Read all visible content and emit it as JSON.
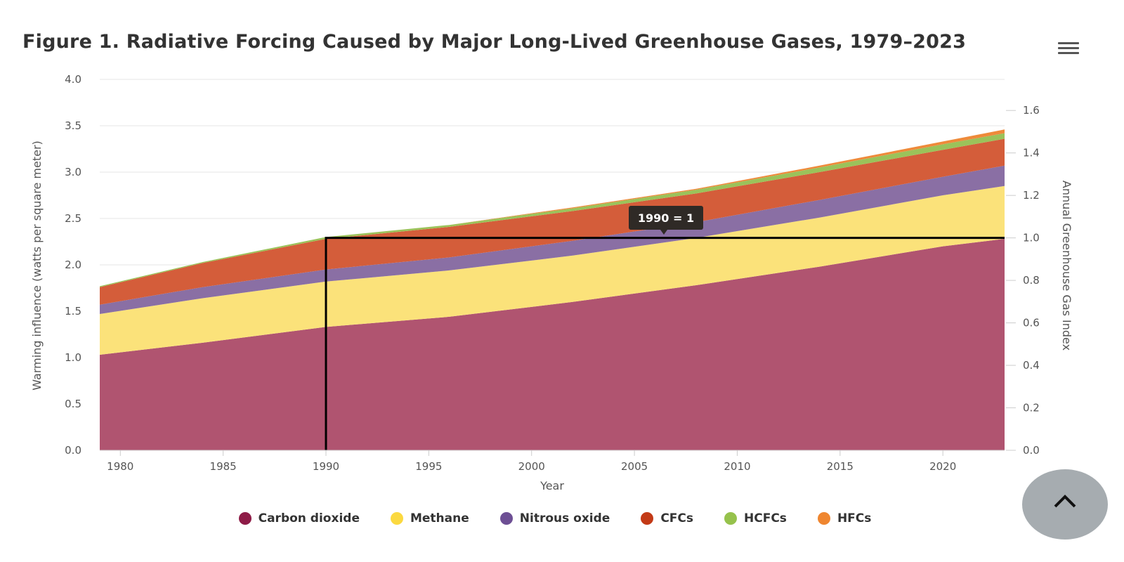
{
  "title": "Figure 1. Radiative Forcing Caused by Major Long-Lived Greenhouse Gases, 1979–2023",
  "menu": {
    "icon": "hamburger-menu-icon"
  },
  "scroll_top": {
    "icon": "chevron-up-icon"
  },
  "tooltip": {
    "text": "1990 = 1"
  },
  "chart_data": {
    "type": "area",
    "stacked": true,
    "xlabel": "Year",
    "ylabel": "Warming influence (watts per square meter)",
    "y2label": "Annual Greenhouse Gas Index",
    "xlim": [
      1979,
      2023
    ],
    "ylim": [
      0,
      4.0
    ],
    "y2lim": [
      0,
      1.7
    ],
    "grid": true,
    "legend_position": "bottom",
    "xticks": [
      "1980",
      "1985",
      "1990",
      "1995",
      "2000",
      "2005",
      "2010",
      "2015",
      "2020"
    ],
    "yticks": [
      "0.0",
      "0.5",
      "1.0",
      "1.5",
      "2.0",
      "2.5",
      "3.0",
      "3.5",
      "4.0"
    ],
    "y2ticks": [
      "0.0",
      "0.2",
      "0.4",
      "0.6",
      "0.8",
      "1.0",
      "1.2",
      "1.4",
      "1.6"
    ],
    "x": [
      1979,
      1984,
      1990,
      1996,
      2002,
      2008,
      2014,
      2020,
      2023
    ],
    "series": [
      {
        "name": "Carbon dioxide",
        "color": "#b05470",
        "values": [
          1.03,
          1.16,
          1.33,
          1.44,
          1.6,
          1.78,
          1.98,
          2.2,
          2.28
        ]
      },
      {
        "name": "Methane",
        "color": "#fbe27a",
        "values": [
          0.44,
          0.48,
          0.49,
          0.5,
          0.5,
          0.51,
          0.53,
          0.55,
          0.57
        ]
      },
      {
        "name": "Nitrous oxide",
        "color": "#8a6fa4",
        "values": [
          0.1,
          0.12,
          0.13,
          0.14,
          0.16,
          0.17,
          0.19,
          0.2,
          0.22
        ]
      },
      {
        "name": "CFCs",
        "color": "#d45d3a",
        "values": [
          0.19,
          0.26,
          0.33,
          0.33,
          0.32,
          0.31,
          0.3,
          0.29,
          0.29
        ]
      },
      {
        "name": "HCFCs",
        "color": "#9bc25a",
        "values": [
          0.01,
          0.01,
          0.02,
          0.02,
          0.03,
          0.04,
          0.05,
          0.06,
          0.06
        ]
      },
      {
        "name": "HFCs",
        "color": "#ee8a3a",
        "values": [
          0.0,
          0.0,
          0.0,
          0.0,
          0.01,
          0.01,
          0.02,
          0.03,
          0.04
        ]
      }
    ],
    "reference_line": {
      "x": 1990,
      "y2": 1.0
    },
    "legend_colors": [
      "#8e1c47",
      "#fbd940",
      "#6d4f94",
      "#c33a17",
      "#96c24c",
      "#ef8630"
    ]
  }
}
